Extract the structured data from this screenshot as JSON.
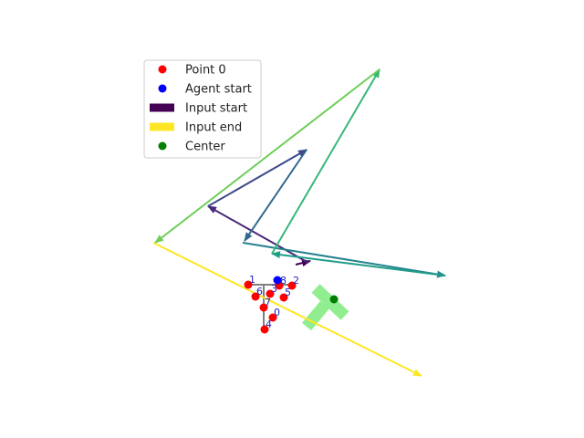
{
  "chart_data": {
    "type": "scatter",
    "title": "",
    "xlabel": "",
    "ylabel": "",
    "axes_visible": false,
    "grid": false,
    "legend_position": "upper-left",
    "legend": [
      {
        "label": "Point 0",
        "kind": "marker",
        "color": "#ff0000"
      },
      {
        "label": "Agent start",
        "kind": "marker",
        "color": "#0000ff"
      },
      {
        "label": "Input start",
        "kind": "patch",
        "color": "#440154"
      },
      {
        "label": "Input end",
        "kind": "patch",
        "color": "#fde725"
      },
      {
        "label": "Center",
        "kind": "marker",
        "color": "#008000"
      }
    ],
    "points": [
      {
        "label": "0",
        "x": 299,
        "y": 348
      },
      {
        "label": "1",
        "x": 272,
        "y": 312
      },
      {
        "label": "2",
        "x": 320,
        "y": 313
      },
      {
        "label": "3",
        "x": 296,
        "y": 322
      },
      {
        "label": "4",
        "x": 290,
        "y": 361
      },
      {
        "label": "5",
        "x": 311,
        "y": 326
      },
      {
        "label": "6",
        "x": 280,
        "y": 325
      },
      {
        "label": "7",
        "x": 289,
        "y": 337
      },
      {
        "label": "8",
        "x": 306,
        "y": 313
      }
    ],
    "agent_start": {
      "x": 304,
      "y": 307
    },
    "center": {
      "x": 366,
      "y": 328
    },
    "shape_segments": [
      [
        [
          272,
          312
        ],
        [
          320,
          312
        ]
      ],
      [
        [
          289,
          312
        ],
        [
          289,
          361
        ]
      ]
    ],
    "target_shape": {
      "color": "#90ee90",
      "segments": [
        [
          [
            346,
            316
          ],
          [
            378,
            346
          ]
        ],
        [
          [
            356,
            334
          ],
          [
            336,
            358
          ]
        ]
      ]
    },
    "input_arrows": [
      {
        "from": [
          324,
          290
        ],
        "to": [
          340,
          286
        ],
        "color": "#440154"
      },
      {
        "from": [
          338,
          288
        ],
        "to": [
          228,
          226
        ],
        "color": "#482878"
      },
      {
        "from": [
          228,
          226
        ],
        "to": [
          336,
          164
        ],
        "color": "#3e4a89"
      },
      {
        "from": [
          336,
          164
        ],
        "to": [
          268,
          264
        ],
        "color": "#31688e"
      },
      {
        "from": [
          266,
          266
        ],
        "to": [
          488,
          302
        ],
        "color": "#26828e"
      },
      {
        "from": [
          488,
          302
        ],
        "to": [
          298,
          278
        ],
        "color": "#1f9e89"
      },
      {
        "from": [
          298,
          278
        ],
        "to": [
          416,
          76
        ],
        "color": "#35b779"
      },
      {
        "from": [
          416,
          76
        ],
        "to": [
          170,
          266
        ],
        "color": "#6ece58"
      },
      {
        "from": [
          168,
          266
        ],
        "to": [
          462,
          412
        ],
        "color": "#fde725"
      }
    ],
    "colors": {
      "point": "#ff0000",
      "agent": "#0000ff",
      "center": "#008000",
      "shape_line": "#808080",
      "label": "#1f1fbf"
    }
  }
}
